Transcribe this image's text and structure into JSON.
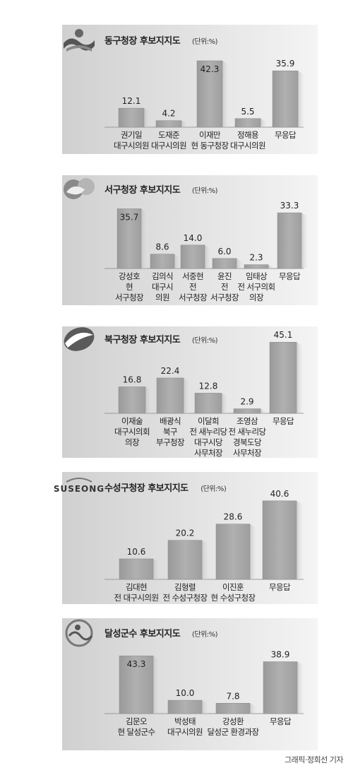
{
  "credit": "그래픽·정희선 기자",
  "chart_data": [
    {
      "type": "bar",
      "logo": "donggu-logo",
      "title": "동구청장 후보지지도",
      "unit": "(단위:%)",
      "categories": [
        "권기일\n대구시의원",
        "도재준\n대구시의원",
        "이재만\n현 동구청장",
        "정해용\n대구시의원",
        "무응답"
      ],
      "values": [
        12.1,
        4.2,
        42.3,
        5.5,
        35.9
      ],
      "ylim": [
        0,
        45
      ]
    },
    {
      "type": "bar",
      "logo": "seogu-logo",
      "title": "서구청장 후보지지도",
      "unit": "(단위:%)",
      "categories": [
        "강성호\n현\n서구청장",
        "김의식\n대구시\n의원",
        "서중현\n전\n서구청장",
        "윤진\n전\n서구청장",
        "임태상\n전 서구의회\n의장",
        "무응답"
      ],
      "values": [
        35.7,
        8.6,
        14.0,
        6.0,
        2.3,
        33.3
      ],
      "ylim": [
        0,
        38
      ]
    },
    {
      "type": "bar",
      "logo": "bukgu-logo",
      "title": "북구청장 후보지지도",
      "unit": "(단위:%)",
      "categories": [
        "이재술\n대구시의회\n의장",
        "배광식\n북구\n부구청장",
        "이달희\n전 새누리당\n대구시당\n사무처장",
        "조영삼\n전 새누리당\n경북도당\n사무처장",
        "무응답"
      ],
      "values": [
        16.8,
        22.4,
        12.8,
        2.9,
        45.1
      ],
      "ylim": [
        0,
        47
      ]
    },
    {
      "type": "bar",
      "logo": "suseong-logo",
      "logo_text": "SUSEONG",
      "title": "수성구청장 후보지지도",
      "unit": "(단위:%)",
      "categories": [
        "김대현\n전 대구시의원",
        "김형렬\n전 수성구청장",
        "이진훈\n현 수성구청장",
        "무응답"
      ],
      "values": [
        10.6,
        20.2,
        28.6,
        40.6
      ],
      "ylim": [
        0,
        42
      ]
    },
    {
      "type": "bar",
      "logo": "dalseong-logo",
      "title": "달성군수 후보지지도",
      "unit": "(단위:%)",
      "categories": [
        "김문오\n현 달성군수",
        "박성태\n대구시의원",
        "강성환\n달성군 환경과장",
        "무응답"
      ],
      "values": [
        43.3,
        10.0,
        7.8,
        38.9
      ],
      "ylim": [
        0,
        45
      ]
    }
  ]
}
